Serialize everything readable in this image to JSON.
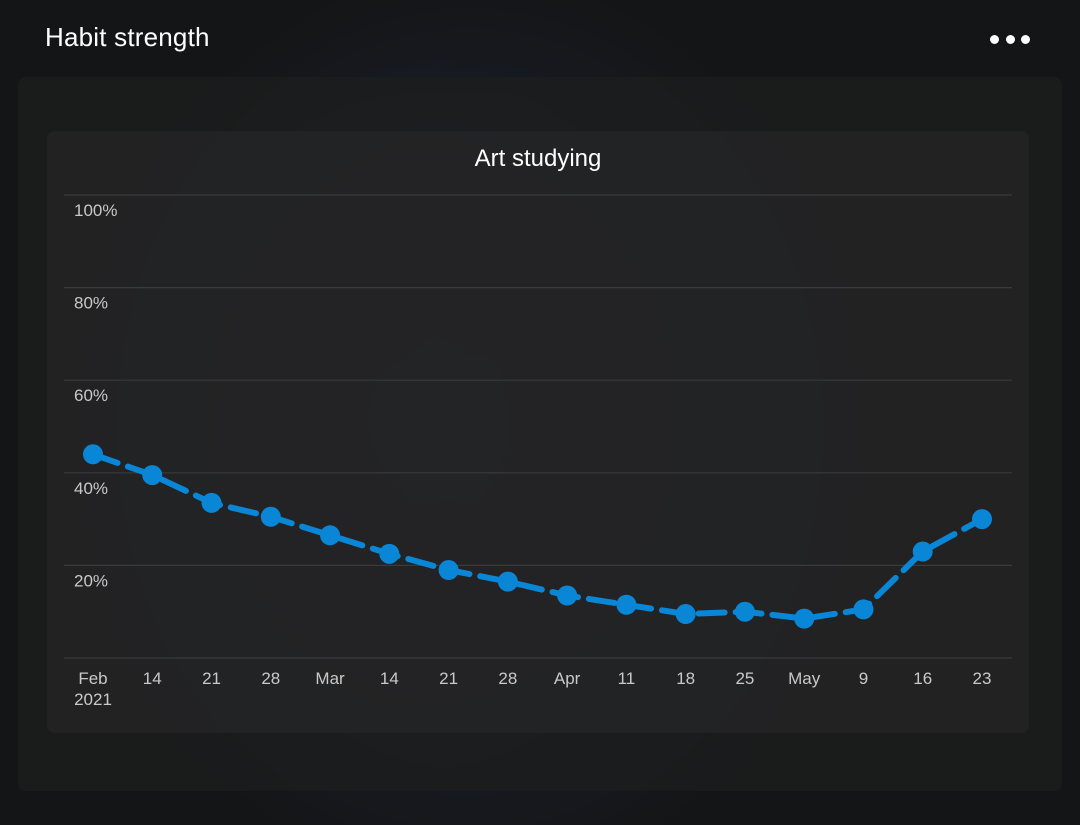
{
  "header": {
    "title": "Habit strength",
    "more_icon": "more-horizontal-icon"
  },
  "colors": {
    "line": "#0a86d6",
    "point": "#0a86d6",
    "grid": "#3a3b3d",
    "text": "#c9c9c9"
  },
  "chart_data": {
    "type": "line",
    "title": "Art studying",
    "xlabel": "",
    "ylabel": "",
    "x_tick_labels": [
      "Feb",
      "14",
      "21",
      "28",
      "Mar",
      "14",
      "21",
      "28",
      "Apr",
      "11",
      "18",
      "25",
      "May",
      "9",
      "16",
      "23"
    ],
    "x_tick_sublabel": "2021",
    "y_ticks": [
      "20%",
      "40%",
      "60%",
      "80%",
      "100%"
    ],
    "ylim": [
      0,
      100
    ],
    "grid": true,
    "line_style": "dashed",
    "series": [
      {
        "values": [
          44,
          39.5,
          33.5,
          30.5,
          26.5,
          22.5,
          19,
          16.5,
          13.5,
          11.5,
          9.5,
          10,
          8.5,
          10.5,
          23,
          30
        ]
      }
    ]
  }
}
